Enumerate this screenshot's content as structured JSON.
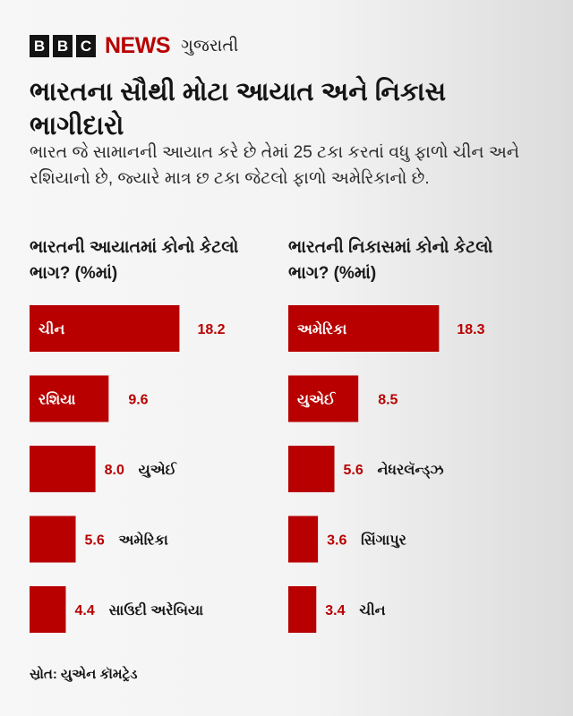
{
  "brand": {
    "b1": "B",
    "b2": "B",
    "b3": "C",
    "news": "NEWS",
    "language": "ગુજરાતી"
  },
  "title": "ભારતના સૌથી મોટા આયાત અને નિકાસ ભાગીદારો",
  "subtitle": "ભારત જે સામાનની આયાત કરે છે તેમાં 25 ટકા કરતાં વધુ ફાળો ચીન અને રશિયાનો છે, જ્યારે માત્ર છ ટકા જેટલો ફાળો અમેરિકાનો છે.",
  "source": "સ્રોત: યુએન કૉમટ્રેડ",
  "colors": {
    "bar": "#b80000",
    "value": "#b80000",
    "bar_label": "#ffffff",
    "outside_label": "#141414"
  },
  "chart_data": [
    {
      "type": "bar",
      "orientation": "horizontal",
      "title": "ભારતની આયાતમાં કોનો કેટલો ભાગ? (%માં)",
      "categories": [
        "ચીન",
        "રશિયા",
        "યુએઈ",
        "અમેરિકા",
        "સાઉદી અરેબિયા"
      ],
      "values": [
        18.2,
        9.6,
        8.0,
        5.6,
        4.4
      ],
      "xlim": [
        0,
        20
      ]
    },
    {
      "type": "bar",
      "orientation": "horizontal",
      "title": "ભારતની નિકાસમાં કોનો કેટલો ભાગ? (%માં)",
      "categories": [
        "અમેરિકા",
        "યુએઈ",
        "નેધરલૅન્ડ્ઝ",
        "સિંગાપુર",
        "ચીન"
      ],
      "values": [
        18.3,
        8.5,
        5.6,
        3.6,
        3.4
      ],
      "xlim": [
        0,
        20
      ]
    }
  ]
}
